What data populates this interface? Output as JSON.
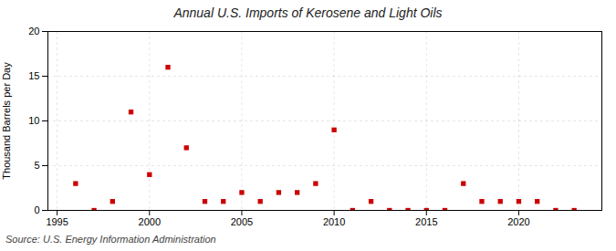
{
  "chart_data": {
    "type": "scatter",
    "title": "Annual U.S. Imports of Kerosene and Light Oils",
    "ylabel": "Thousand Barrels per Day",
    "source": "Source: U.S. Energy Information Administration",
    "x": [
      1996,
      1997,
      1998,
      1999,
      2000,
      2001,
      2002,
      2003,
      2004,
      2005,
      2006,
      2007,
      2008,
      2009,
      2010,
      2011,
      2012,
      2013,
      2014,
      2015,
      2016,
      2017,
      2018,
      2019,
      2020,
      2021,
      2022,
      2023
    ],
    "values": [
      3,
      0,
      1,
      11,
      4,
      16,
      7,
      1,
      1,
      2,
      1,
      2,
      2,
      3,
      9,
      0,
      1,
      0,
      0,
      0,
      0,
      3,
      1,
      1,
      1,
      1,
      0,
      0
    ],
    "color": "#cc0000",
    "marker": "square",
    "xlim": [
      1994.5,
      2024.5
    ],
    "ylim": [
      0,
      20
    ],
    "xticks": [
      1995,
      2000,
      2005,
      2010,
      2015,
      2020
    ],
    "yticks": [
      0,
      5,
      10,
      15,
      20
    ],
    "grid": true
  }
}
